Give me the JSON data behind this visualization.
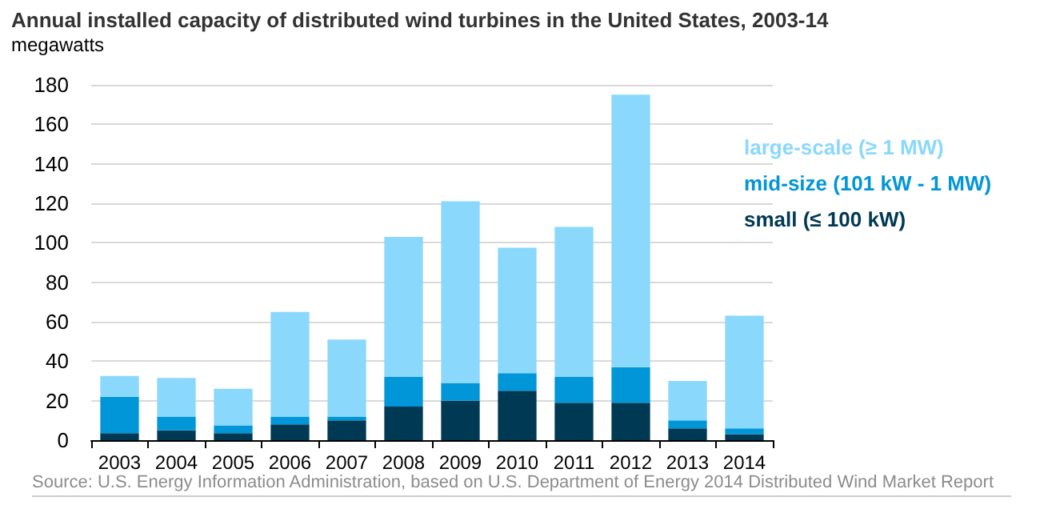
{
  "chart_data": {
    "type": "bar",
    "title": "Annual installed capacity of distributed wind turbines in the United States, 2003-14",
    "ylabel": "megawatts",
    "categories": [
      "2003",
      "2004",
      "2005",
      "2006",
      "2007",
      "2008",
      "2009",
      "2010",
      "2011",
      "2012",
      "2013",
      "2014"
    ],
    "stacked": true,
    "series": [
      {
        "name": "small (≤ 100 kW)",
        "color": "#003953",
        "values": [
          3.5,
          5,
          3.5,
          8,
          10,
          17,
          20,
          25,
          19,
          19,
          6,
          3
        ]
      },
      {
        "name": "mid-size (101 kW - 1 MW)",
        "color": "#0096d7",
        "values": [
          18.5,
          7,
          4,
          4,
          2,
          15,
          9,
          9,
          13,
          18,
          4,
          3
        ]
      },
      {
        "name": "large-scale (≥ 1 MW)",
        "color": "#8ad8fc",
        "values": [
          10.5,
          19.5,
          18.5,
          53,
          39,
          71,
          92,
          63.5,
          76,
          138,
          20,
          57
        ]
      }
    ],
    "ylim": [
      0,
      180
    ],
    "yticks": [
      0,
      20,
      40,
      60,
      80,
      100,
      120,
      140,
      160,
      180
    ],
    "grid": "y",
    "legend": "right",
    "annotations": [
      "Source: U.S. Energy Information Administration, based on U.S. Department of Energy 2014 Distributed Wind Market Report"
    ]
  }
}
